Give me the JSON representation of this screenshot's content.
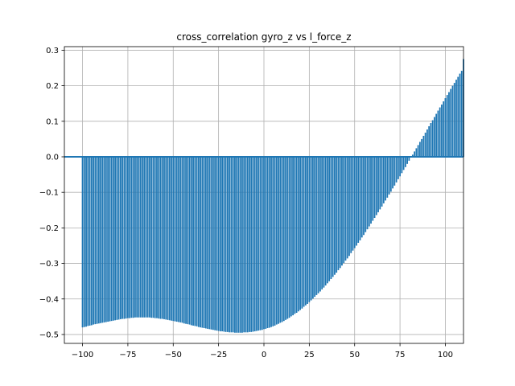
{
  "chart_data": {
    "type": "bar",
    "title": "cross_correlation gyro_z vs l_force_z",
    "xlabel": "",
    "ylabel": "",
    "xlim": [
      -110,
      110
    ],
    "ylim": [
      -0.525,
      0.31
    ],
    "xticks": [
      -100,
      -75,
      -50,
      -25,
      0,
      25,
      50,
      75,
      100
    ],
    "xtick_labels": [
      "−100",
      "−75",
      "−50",
      "−25",
      "0",
      "25",
      "50",
      "75",
      "100"
    ],
    "yticks": [
      -0.5,
      -0.4,
      -0.3,
      -0.2,
      -0.1,
      0.0,
      0.1,
      0.2,
      0.3
    ],
    "ytick_labels": [
      "−0.5",
      "−0.4",
      "−0.3",
      "−0.2",
      "−0.1",
      "0.0",
      "0.1",
      "0.2",
      "0.3"
    ],
    "grid": true,
    "baseline": 0,
    "x_range": [
      -100,
      100
    ],
    "x_step": 1,
    "series": [
      {
        "color": "#1f77b4",
        "values": [
          -0.48,
          -0.479,
          -0.478,
          -0.476,
          -0.475,
          -0.474,
          -0.472,
          -0.471,
          -0.47,
          -0.469,
          -0.468,
          -0.467,
          -0.466,
          -0.465,
          -0.464,
          -0.463,
          -0.462,
          -0.461,
          -0.46,
          -0.459,
          -0.458,
          -0.457,
          -0.456,
          -0.456,
          -0.455,
          -0.454,
          -0.454,
          -0.453,
          -0.453,
          -0.452,
          -0.452,
          -0.452,
          -0.452,
          -0.452,
          -0.452,
          -0.452,
          -0.452,
          -0.452,
          -0.453,
          -0.453,
          -0.454,
          -0.454,
          -0.455,
          -0.456,
          -0.456,
          -0.457,
          -0.458,
          -0.459,
          -0.46,
          -0.461,
          -0.462,
          -0.463,
          -0.464,
          -0.465,
          -0.466,
          -0.467,
          -0.469,
          -0.47,
          -0.471,
          -0.472,
          -0.474,
          -0.475,
          -0.476,
          -0.477,
          -0.479,
          -0.48,
          -0.481,
          -0.482,
          -0.483,
          -0.484,
          -0.485,
          -0.486,
          -0.487,
          -0.488,
          -0.489,
          -0.49,
          -0.491,
          -0.491,
          -0.492,
          -0.493,
          -0.493,
          -0.494,
          -0.494,
          -0.494,
          -0.495,
          -0.495,
          -0.495,
          -0.495,
          -0.495,
          -0.494,
          -0.494,
          -0.494,
          -0.493,
          -0.493,
          -0.492,
          -0.491,
          -0.49,
          -0.489,
          -0.488,
          -0.487,
          -0.485,
          -0.484,
          -0.482,
          -0.481,
          -0.479,
          -0.477,
          -0.475,
          -0.472,
          -0.47,
          -0.467,
          -0.465,
          -0.462,
          -0.459,
          -0.456,
          -0.453,
          -0.449,
          -0.446,
          -0.442,
          -0.439,
          -0.435,
          -0.431,
          -0.427,
          -0.422,
          -0.418,
          -0.414,
          -0.409,
          -0.404,
          -0.399,
          -0.394,
          -0.389,
          -0.384,
          -0.379,
          -0.373,
          -0.368,
          -0.362,
          -0.356,
          -0.35,
          -0.344,
          -0.338,
          -0.332,
          -0.326,
          -0.319,
          -0.313,
          -0.306,
          -0.299,
          -0.292,
          -0.286,
          -0.279,
          -0.271,
          -0.264,
          -0.257,
          -0.25,
          -0.242,
          -0.235,
          -0.227,
          -0.22,
          -0.212,
          -0.204,
          -0.196,
          -0.188,
          -0.18,
          -0.172,
          -0.164,
          -0.156,
          -0.148,
          -0.14,
          -0.131,
          -0.123,
          -0.115,
          -0.106,
          -0.098,
          -0.089,
          -0.081,
          -0.072,
          -0.063,
          -0.055,
          -0.046,
          -0.037,
          -0.029,
          -0.02,
          -0.011,
          -0.002,
          0.006,
          0.015,
          0.024,
          0.033,
          0.042,
          0.05,
          0.059,
          0.068,
          0.077,
          0.086,
          0.095,
          0.103,
          0.112,
          0.121,
          0.13,
          0.139,
          0.147,
          0.156,
          0.165,
          0.174,
          0.182,
          0.191,
          0.2,
          0.208,
          0.217,
          0.225,
          0.234,
          0.242,
          0.275
        ]
      }
    ]
  }
}
